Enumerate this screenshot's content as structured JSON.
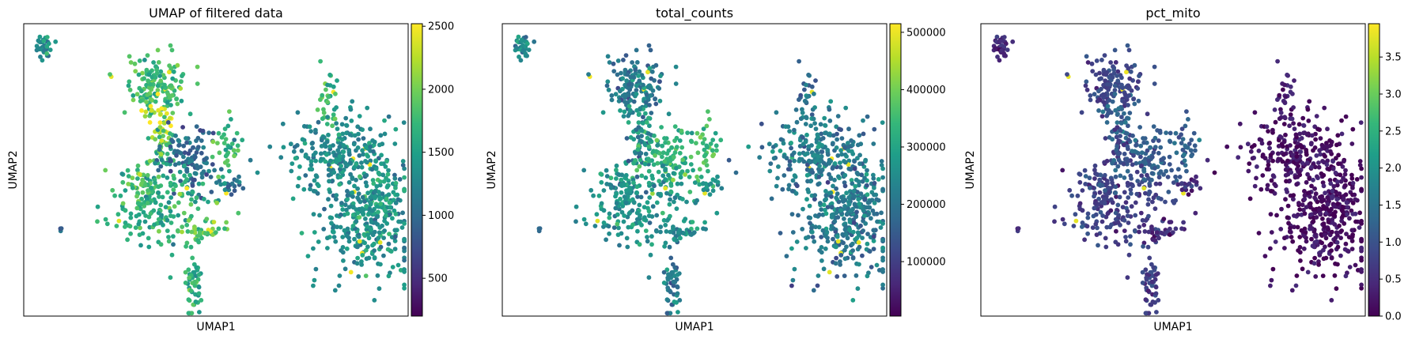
{
  "figure": {
    "panels": [
      {
        "title": "UMAP of filtered data",
        "xlabel": "UMAP1",
        "ylabel": "UMAP2"
      },
      {
        "title": "total_counts",
        "xlabel": "UMAP1",
        "ylabel": "UMAP2"
      },
      {
        "title": "pct_mito",
        "xlabel": "UMAP1",
        "ylabel": "UMAP2"
      }
    ]
  },
  "chart_data": [
    {
      "type": "scatter",
      "title": "UMAP of filtered data",
      "xlabel": "UMAP1",
      "ylabel": "UMAP2",
      "colormap": "viridis",
      "colorbar": {
        "range": [
          200,
          2520
        ],
        "ticks": [
          500,
          1000,
          1500,
          2000,
          2500
        ]
      },
      "x_ticks_shown": false,
      "y_ticks_shown": false
    },
    {
      "type": "scatter",
      "title": "total_counts",
      "xlabel": "UMAP1",
      "ylabel": "UMAP2",
      "colormap": "viridis",
      "colorbar": {
        "range": [
          5000,
          515000
        ],
        "ticks": [
          100000,
          200000,
          300000,
          400000,
          500000
        ]
      },
      "x_ticks_shown": false,
      "y_ticks_shown": false
    },
    {
      "type": "scatter",
      "title": "pct_mito",
      "xlabel": "UMAP1",
      "ylabel": "UMAP2",
      "colormap": "viridis",
      "colorbar": {
        "range": [
          0,
          3.95
        ],
        "ticks": [
          0.0,
          0.5,
          1.0,
          1.5,
          2.0,
          2.5,
          3.0,
          3.5
        ]
      },
      "x_ticks_shown": false,
      "y_ticks_shown": false
    }
  ],
  "colors": {
    "viridis_stops": [
      "#440154",
      "#482878",
      "#3e4989",
      "#31688e",
      "#26828e",
      "#1f9e89",
      "#35b779",
      "#6ece58",
      "#b5de2b",
      "#fde725"
    ],
    "axes": "#000000",
    "background": "#ffffff"
  }
}
